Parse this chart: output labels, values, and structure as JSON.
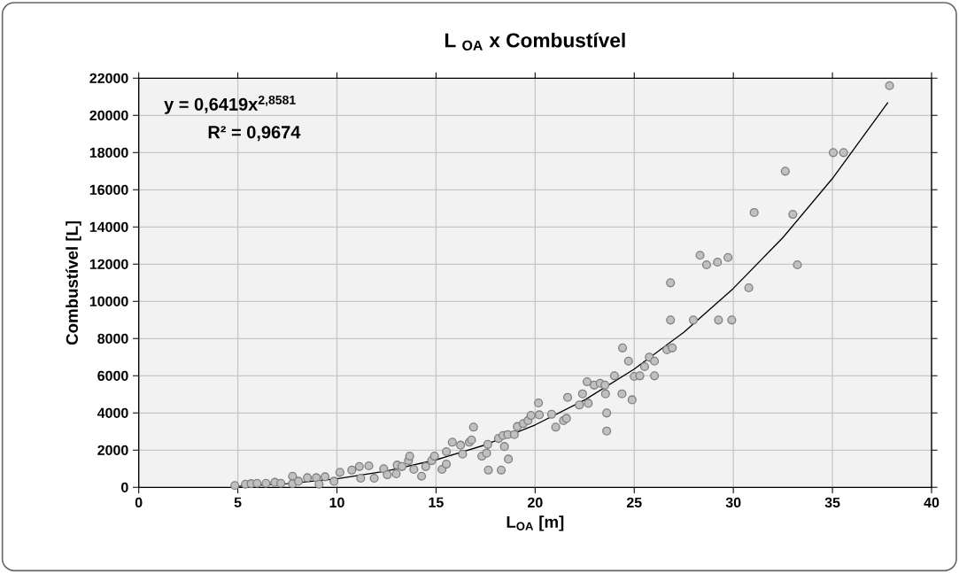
{
  "chart_data": {
    "type": "scatter",
    "title": "L $_{OA}$ x Combustível",
    "xlabel": "L$_{OA}$ [m]",
    "ylabel": "Combustível [L]",
    "annotations": [
      "y = 0,6419x$^{2,8581}$",
      "R² = 0,9674"
    ],
    "xlim": [
      0,
      40
    ],
    "xticks": [
      0,
      5,
      10,
      15,
      20,
      25,
      30,
      35,
      40
    ],
    "ylim": [
      0,
      22000
    ],
    "yticks": [
      0,
      2000,
      4000,
      6000,
      8000,
      10000,
      12000,
      14000,
      16000,
      18000,
      20000,
      22000
    ],
    "grid": true,
    "series": [
      {
        "marker": "circle",
        "color": "#c0c0c0",
        "x": [
          4.85,
          5.38,
          5.67,
          5.97,
          6.42,
          6.87,
          7.17,
          7.76,
          7.76,
          8.06,
          8.51,
          8.96,
          9.1,
          9.4,
          9.85,
          10.15,
          10.75,
          11.13,
          11.2,
          11.61,
          11.88,
          12.36,
          12.54,
          12.99,
          13.04,
          13.28,
          13.61,
          13.67,
          13.88,
          14.27,
          14.48,
          14.78,
          14.92,
          15.3,
          15.52,
          15.52,
          15.82,
          16.24,
          16.34,
          16.68,
          16.79,
          16.89,
          17.31,
          17.55,
          17.61,
          17.64,
          18.15,
          18.29,
          18.38,
          18.45,
          18.62,
          18.65,
          18.95,
          19.1,
          19.4,
          19.64,
          19.79,
          20.17,
          20.21,
          20.83,
          21.04,
          21.43,
          21.58,
          21.64,
          22.23,
          22.39,
          22.62,
          22.68,
          22.98,
          23.28,
          23.52,
          23.55,
          23.61,
          23.61,
          24.0,
          24.38,
          24.41,
          24.71,
          24.89,
          25.0,
          25.28,
          25.52,
          25.76,
          26.02,
          26.02,
          26.65,
          26.83,
          26.83,
          26.92,
          27.98,
          28.32,
          28.65,
          29.2,
          29.25,
          29.73,
          29.92,
          30.78,
          31.05,
          32.62,
          33.0,
          33.23,
          35.04,
          35.56,
          37.88
        ],
        "values": [
          100,
          170,
          200,
          220,
          220,
          270,
          220,
          600,
          200,
          330,
          520,
          520,
          170,
          570,
          330,
          810,
          930,
          1120,
          490,
          1160,
          490,
          1000,
          680,
          730,
          1200,
          1120,
          1440,
          1680,
          970,
          600,
          1120,
          1440,
          1680,
          970,
          1920,
          1250,
          2430,
          2270,
          1790,
          2430,
          2550,
          3240,
          1680,
          1840,
          2310,
          930,
          2630,
          930,
          2790,
          2200,
          2840,
          1520,
          2840,
          3270,
          3430,
          3590,
          3870,
          4540,
          3900,
          3930,
          3240,
          3590,
          3710,
          4840,
          4430,
          5030,
          5680,
          4520,
          5500,
          5600,
          5500,
          5030,
          4000,
          3030,
          6000,
          5030,
          7500,
          6790,
          4710,
          5970,
          6000,
          6490,
          7000,
          6790,
          6000,
          7400,
          11000,
          9000,
          7500,
          9000,
          12480,
          11970,
          12110,
          9000,
          12360,
          9000,
          10730,
          14780,
          17000,
          14680,
          11970,
          18000,
          18000,
          21600
        ]
      },
      {
        "type": "line",
        "marker": "none",
        "color": "#000000",
        "x": [
          4.9,
          5,
          7.5,
          10,
          12.5,
          15,
          17.5,
          20,
          22.5,
          25,
          27.5,
          30,
          32.5,
          35,
          37.8
        ],
        "values": [
          60,
          60,
          200,
          460,
          880,
          1480,
          2290,
          3360,
          4700,
          6360,
          8340,
          10700,
          13430,
          16610,
          20700
        ]
      }
    ]
  }
}
